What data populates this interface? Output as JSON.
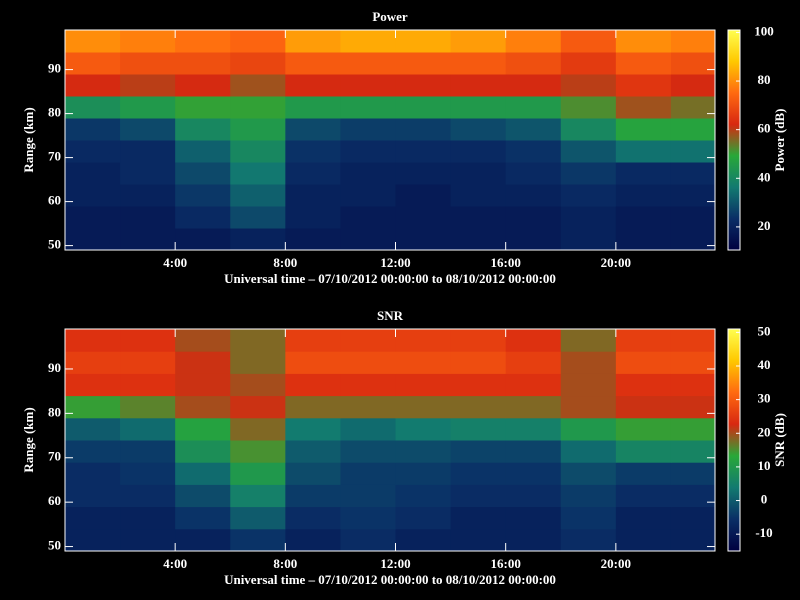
{
  "chart_data": [
    {
      "type": "heatmap",
      "title": "Power",
      "x_label": "Universal time – 07/10/2012 00:00:00 to 08/10/2012 00:00:00",
      "y_label": "Range (km)",
      "colorbar_label": "Power (dB)",
      "x_bins": [
        0,
        2,
        4,
        6,
        8,
        10,
        12,
        14,
        16,
        18,
        20,
        22,
        23.6
      ],
      "y_bins": [
        49,
        54,
        59,
        64,
        69,
        74,
        79,
        84,
        89,
        94,
        99
      ],
      "z": [
        [
          18,
          18,
          18,
          20,
          18,
          18,
          18,
          18,
          18,
          20,
          18,
          18
        ],
        [
          18,
          18,
          22,
          28,
          20,
          18,
          18,
          18,
          18,
          20,
          18,
          18
        ],
        [
          20,
          20,
          25,
          32,
          20,
          20,
          18,
          20,
          20,
          22,
          20,
          20
        ],
        [
          20,
          22,
          28,
          36,
          22,
          20,
          20,
          20,
          22,
          25,
          22,
          22
        ],
        [
          22,
          22,
          32,
          40,
          24,
          22,
          22,
          22,
          24,
          30,
          35,
          35
        ],
        [
          25,
          28,
          40,
          45,
          28,
          26,
          26,
          28,
          30,
          40,
          48,
          48
        ],
        [
          42,
          45,
          50,
          50,
          45,
          45,
          45,
          45,
          45,
          52,
          58,
          55
        ],
        [
          62,
          60,
          62,
          58,
          62,
          62,
          62,
          62,
          62,
          60,
          65,
          62
        ],
        [
          72,
          70,
          70,
          68,
          72,
          72,
          72,
          72,
          70,
          66,
          72,
          70
        ],
        [
          80,
          78,
          76,
          74,
          82,
          84,
          84,
          82,
          78,
          72,
          80,
          78
        ]
      ],
      "xlim": [
        0,
        23.6
      ],
      "ylim": [
        49,
        99
      ],
      "xticks": [
        {
          "value": 4,
          "label": "4:00"
        },
        {
          "value": 8,
          "label": "8:00"
        },
        {
          "value": 12,
          "label": "12:00"
        },
        {
          "value": 16,
          "label": "16:00"
        },
        {
          "value": 20,
          "label": "20:00"
        }
      ],
      "yticks": [
        50,
        60,
        70,
        80,
        90
      ],
      "clim": [
        10.5,
        101
      ],
      "cticks": [
        20,
        40,
        60,
        80,
        100
      ],
      "colormap": [
        "#000040",
        "#0a2e66",
        "#127a70",
        "#28a838",
        "#d82810",
        "#ff6a10",
        "#ffc800",
        "#ffff50"
      ]
    },
    {
      "type": "heatmap",
      "title": "SNR",
      "x_label": "Universal time – 07/10/2012 00:00:00 to 08/10/2012 00:00:00",
      "y_label": "Range (km)",
      "colorbar_label": "SNR (dB)",
      "x_bins": [
        0,
        2,
        4,
        6,
        8,
        10,
        12,
        14,
        16,
        18,
        20,
        22,
        23.6
      ],
      "y_bins": [
        49,
        54,
        59,
        64,
        69,
        74,
        79,
        84,
        89,
        94,
        99
      ],
      "z": [
        [
          -8,
          -8,
          -8,
          -5,
          -8,
          -6,
          -8,
          -8,
          -8,
          -6,
          -8,
          -8
        ],
        [
          -8,
          -8,
          -5,
          0,
          -6,
          -5,
          -6,
          -8,
          -8,
          -5,
          -8,
          -8
        ],
        [
          -6,
          -6,
          -2,
          5,
          -4,
          -4,
          -5,
          -6,
          -6,
          -4,
          -6,
          -6
        ],
        [
          -6,
          -5,
          2,
          10,
          -2,
          -4,
          -4,
          -5,
          -5,
          -2,
          -4,
          -4
        ],
        [
          -4,
          -4,
          8,
          15,
          0,
          -2,
          -2,
          -3,
          -3,
          2,
          6,
          6
        ],
        [
          0,
          2,
          12,
          18,
          4,
          2,
          4,
          5,
          5,
          10,
          14,
          14
        ],
        [
          14,
          16,
          20,
          22,
          18,
          18,
          18,
          18,
          18,
          20,
          22,
          22
        ],
        [
          24,
          24,
          22,
          20,
          24,
          24,
          24,
          24,
          24,
          20,
          24,
          24
        ],
        [
          26,
          26,
          22,
          18,
          28,
          28,
          28,
          28,
          26,
          20,
          28,
          28
        ],
        [
          24,
          24,
          20,
          18,
          26,
          26,
          26,
          26,
          24,
          18,
          26,
          26
        ]
      ],
      "xlim": [
        0,
        23.6
      ],
      "ylim": [
        49,
        99
      ],
      "xticks": [
        {
          "value": 4,
          "label": "4:00"
        },
        {
          "value": 8,
          "label": "8:00"
        },
        {
          "value": 12,
          "label": "12:00"
        },
        {
          "value": 16,
          "label": "16:00"
        },
        {
          "value": 20,
          "label": "20:00"
        }
      ],
      "yticks": [
        50,
        60,
        70,
        80,
        90
      ],
      "clim": [
        -15,
        51
      ],
      "cticks": [
        -10,
        0,
        10,
        20,
        30,
        40,
        50
      ],
      "colormap": [
        "#000040",
        "#0a2e66",
        "#127a70",
        "#28a838",
        "#d82810",
        "#ff6a10",
        "#ffc800",
        "#ffff50"
      ]
    }
  ]
}
